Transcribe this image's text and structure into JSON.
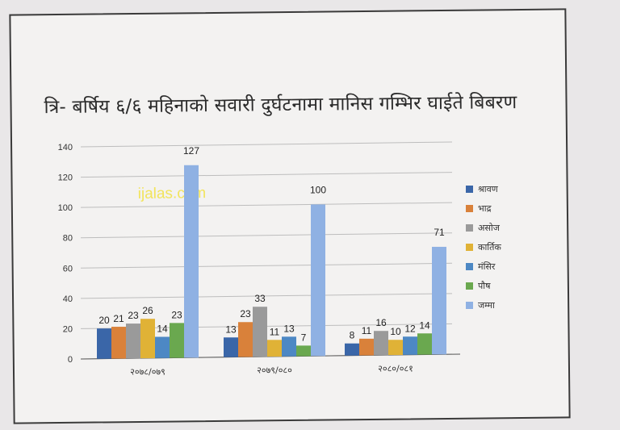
{
  "watermark": "ijalas.com",
  "chart_data": {
    "type": "bar",
    "title": "त्रि- बर्षिय ६/६ महिनाको सवारी दुर्घटनामा मानिस गम्भिर घाईते बिबरण",
    "categories": [
      "२०७८/०७९",
      "२०७९/०८०",
      "२०८०/०८१"
    ],
    "ylim": [
      0,
      140
    ],
    "yticks": [
      0,
      20,
      40,
      60,
      80,
      100,
      120,
      140
    ],
    "grid": true,
    "legend_position": "right",
    "series": [
      {
        "name": "श्रावण",
        "color": "#3a66a8",
        "values": [
          20,
          13,
          8
        ]
      },
      {
        "name": "भाद्र",
        "color": "#d9813a",
        "values": [
          21,
          23,
          11
        ]
      },
      {
        "name": "असोज",
        "color": "#9a9a9a",
        "values": [
          23,
          33,
          16
        ]
      },
      {
        "name": "कार्तिक",
        "color": "#e0b236",
        "values": [
          26,
          11,
          10
        ]
      },
      {
        "name": "मंसिर",
        "color": "#4d88c4",
        "values": [
          14,
          13,
          12
        ]
      },
      {
        "name": "पौष",
        "color": "#6aa84f",
        "values": [
          23,
          7,
          14
        ]
      },
      {
        "name": "जम्मा",
        "color": "#8fb1e3",
        "values": [
          127,
          100,
          71
        ]
      }
    ]
  }
}
